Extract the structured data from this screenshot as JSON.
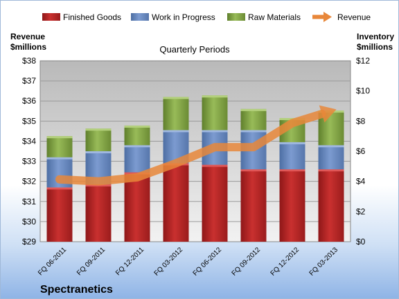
{
  "chart_data": {
    "type": "bar",
    "title": "Quarterly Periods",
    "company": "Spectranetics",
    "y_left_label": [
      "Revenue",
      "$millions"
    ],
    "y_right_label": [
      "Inventory",
      "$millions"
    ],
    "y_left_range": [
      29,
      38
    ],
    "y_left_ticks": [
      "$29",
      "$30",
      "$31",
      "$32",
      "$33",
      "$34",
      "$35",
      "$36",
      "$37",
      "$38"
    ],
    "y_right_range": [
      0,
      12
    ],
    "y_right_ticks": [
      "$0",
      "$2",
      "$4",
      "$6",
      "$8",
      "$10",
      "$12"
    ],
    "grid": true,
    "legend_position": "top",
    "categories": [
      "FQ 06-2011",
      "FQ 09-2011",
      "FQ 12-2011",
      "FQ 03-2012",
      "FQ 06-2012",
      "FQ 09-2012",
      "FQ 12-2012",
      "FQ 03-2013"
    ],
    "series": [
      {
        "name": "Finished Goods",
        "type": "stacked-bar",
        "axis": "right",
        "color": "#c0292b",
        "values": [
          3.6,
          3.8,
          4.6,
          5.2,
          5.1,
          4.8,
          4.8,
          4.8
        ]
      },
      {
        "name": "Work in Progress",
        "type": "stacked-bar",
        "axis": "right",
        "color": "#6f8fc4",
        "values": [
          2.0,
          2.2,
          1.8,
          2.2,
          2.3,
          2.6,
          1.8,
          1.6
        ]
      },
      {
        "name": "Raw Materials",
        "type": "stacked-bar",
        "axis": "right",
        "color": "#8daf4f",
        "values": [
          1.4,
          1.5,
          1.3,
          2.2,
          2.3,
          1.4,
          1.6,
          2.3
        ]
      },
      {
        "name": "Revenue",
        "type": "line-arrow",
        "axis": "left",
        "color": "#e8873a",
        "values": [
          32.1,
          32.0,
          32.2,
          32.9,
          33.7,
          33.7,
          34.9,
          35.5
        ]
      }
    ]
  }
}
